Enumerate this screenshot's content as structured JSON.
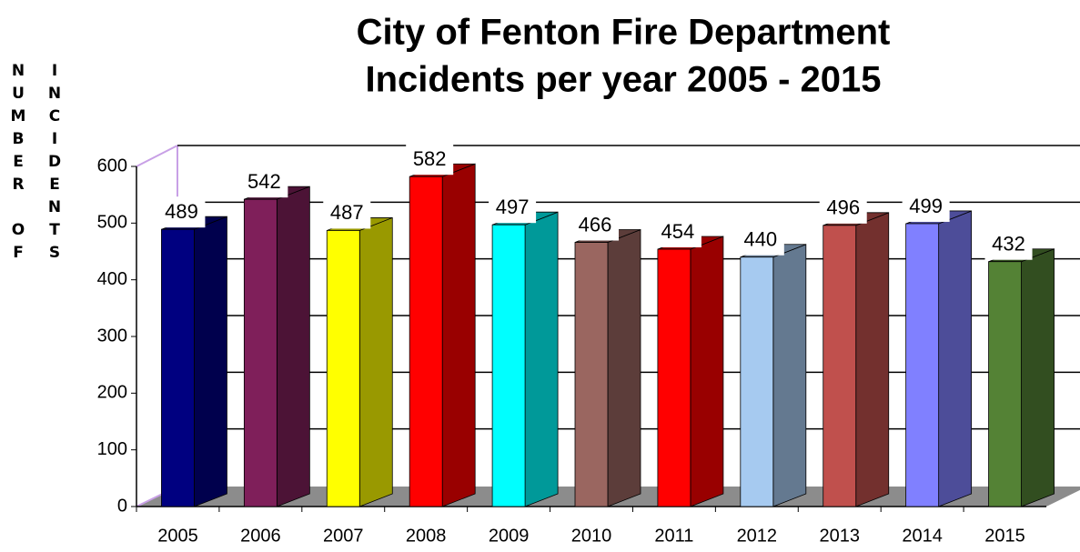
{
  "chart_data": {
    "type": "bar3d",
    "title": "City of Fenton Fire Department",
    "subtitle": "Incidents per year 2005 - 2015",
    "ylabel": [
      "NUMBER OF",
      "INCIDENTS"
    ],
    "categories": [
      "2005",
      "2006",
      "2007",
      "2008",
      "2009",
      "2010",
      "2011",
      "2012",
      "2013",
      "2014",
      "2015"
    ],
    "values": [
      489,
      542,
      487,
      582,
      497,
      466,
      454,
      440,
      496,
      499,
      432
    ],
    "colors": [
      "#000080",
      "#7f1f5a",
      "#ffff00",
      "#ff0000",
      "#00ffff",
      "#9a6660",
      "#ff0000",
      "#a6caf0",
      "#c0504d",
      "#8080ff",
      "#548235"
    ],
    "ylim": [
      0,
      600
    ],
    "yticks": [
      0,
      100,
      200,
      300,
      400,
      500,
      600
    ],
    "grid": true
  }
}
